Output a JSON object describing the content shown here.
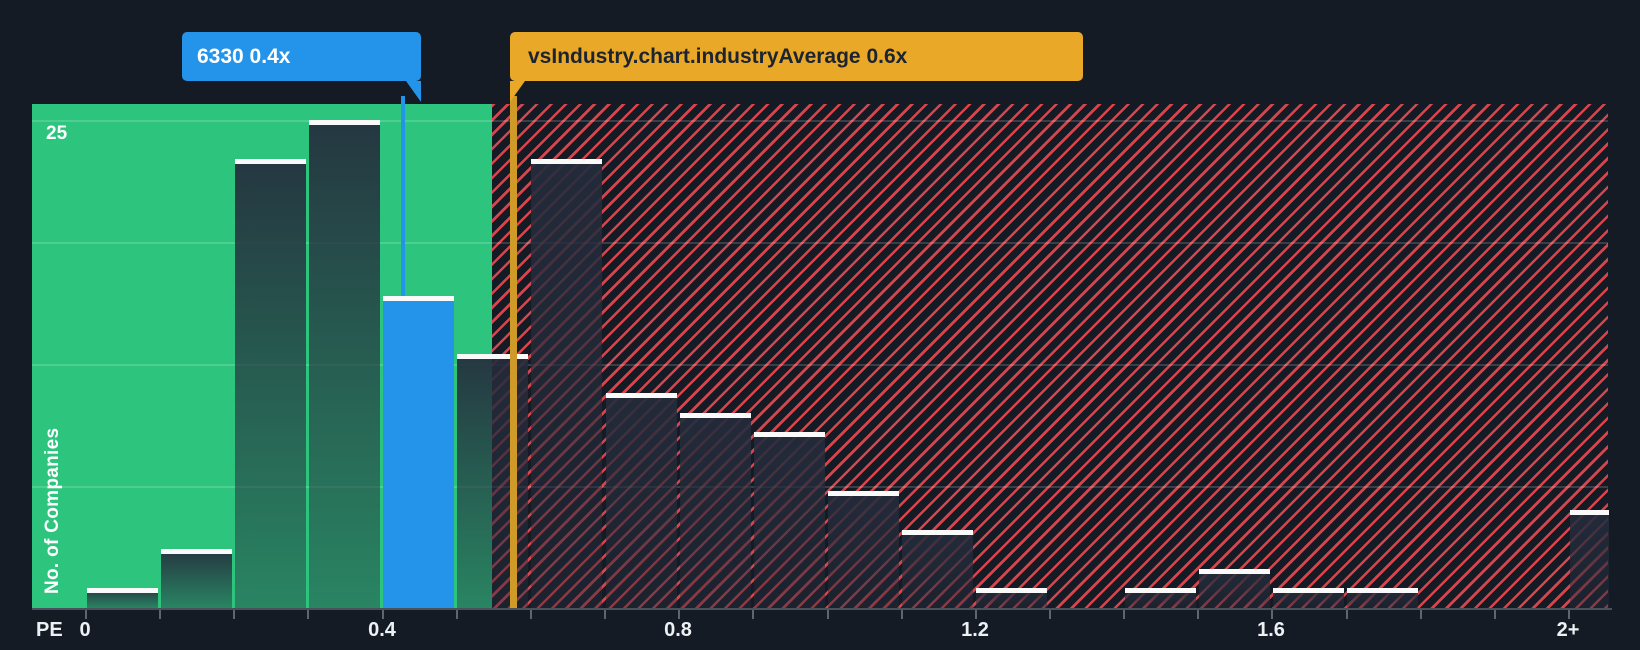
{
  "tooltips": {
    "company": {
      "label": "6330 0.4x",
      "color": "#2394ea"
    },
    "industry": {
      "label": "vsIndustry.chart.industryAverage 0.6x",
      "color": "#e9a827"
    }
  },
  "axes": {
    "pe_label": "PE",
    "y_label": "No. of Companies",
    "y_tick_label": "25"
  },
  "chart_data": {
    "type": "bar",
    "title": "",
    "xlabel": "PE",
    "ylabel": "No. of Companies",
    "bucket_width": 0.1,
    "x_bucket_starts": [
      0.0,
      0.1,
      0.2,
      0.3,
      0.4,
      0.5,
      0.6,
      0.7,
      0.8,
      0.9,
      1.0,
      1.1,
      1.2,
      1.3,
      1.4,
      1.5,
      1.6,
      1.7,
      1.8,
      1.9,
      2.0
    ],
    "values": [
      1,
      3,
      23,
      25,
      16,
      13,
      23,
      11,
      10,
      9,
      6,
      4,
      1,
      0,
      1,
      2,
      1,
      1,
      0,
      0,
      5
    ],
    "highlight": {
      "bucket_start": 0.4,
      "value": 16,
      "label": "6330 0.4x"
    },
    "industry_average": {
      "value": 0.6,
      "label": "vsIndustry.chart.industryAverage 0.6x"
    },
    "x_tick_labels": [
      {
        "label": "0",
        "at": 0.0
      },
      {
        "label": "0.4",
        "at": 0.4
      },
      {
        "label": "0.8",
        "at": 0.8
      },
      {
        "label": "1.2",
        "at": 1.2
      },
      {
        "label": "1.6",
        "at": 1.6
      },
      {
        "label": "2+",
        "at": 2.0
      }
    ],
    "y_gridline_values": [
      6.25,
      12.5,
      18.75,
      25
    ],
    "ylim": [
      0,
      25.8
    ],
    "legend": "none",
    "zones": {
      "below_average": "solid green region",
      "above_average": "red hatched region"
    }
  },
  "colors": {
    "background": "#151b24",
    "green_zone": "#2dc57e",
    "hatch_red": "#e9484f",
    "highlight_blue": "#2394ea",
    "industry_orange": "#e9a827",
    "industry_line": "#cf9a28",
    "bar_cap": "#fafafa",
    "axis_gray": "#5d656f",
    "text_white": "#eef1f4",
    "tooltip_text_dark": "#1b2430"
  }
}
